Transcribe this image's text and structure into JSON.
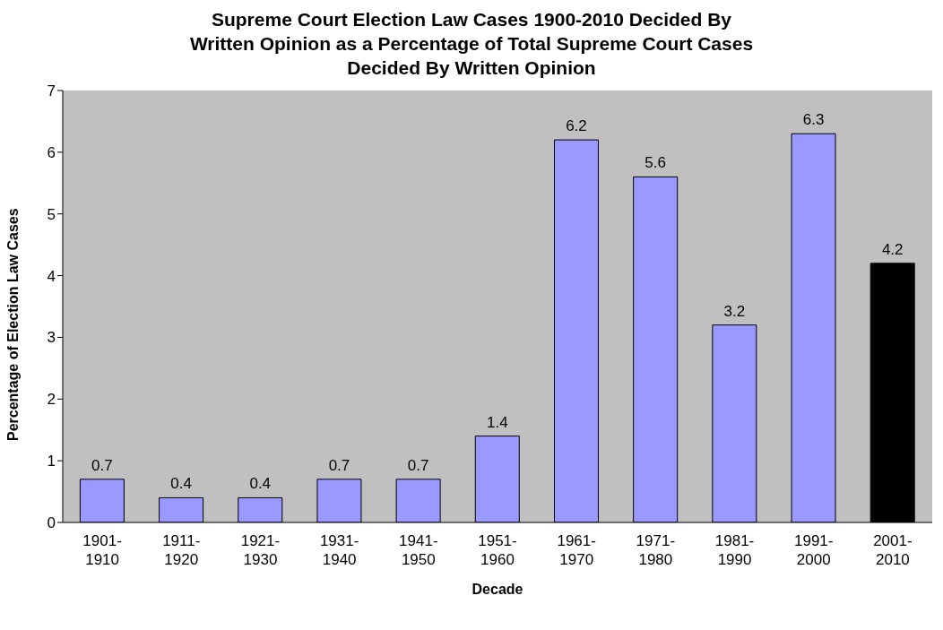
{
  "chart_data": {
    "type": "bar",
    "title": "Supreme Court Election Law Cases 1900-2010 Decided By Written Opinion as a Percentage of  Total Supreme Court Cases Decided By Written Opinion",
    "xlabel": "Decade",
    "ylabel": "Percentage of Election Law Cases",
    "categories": [
      "1901-1910",
      "1911-1920",
      "1921-1930",
      "1931-1940",
      "1941-1950",
      "1951-1960",
      "1961-1970",
      "1971-1980",
      "1981-1990",
      "1991-2000",
      "2001-2010"
    ],
    "values": [
      0.7,
      0.4,
      0.4,
      0.7,
      0.7,
      1.4,
      6.2,
      5.6,
      3.2,
      6.3,
      4.2
    ],
    "colors": [
      "#9999ff",
      "#9999ff",
      "#9999ff",
      "#9999ff",
      "#9999ff",
      "#9999ff",
      "#9999ff",
      "#9999ff",
      "#9999ff",
      "#9999ff",
      "#000000"
    ],
    "ylim": [
      0,
      7
    ],
    "yticks": [
      0,
      1,
      2,
      3,
      4,
      5,
      6,
      7
    ],
    "data_labels": true,
    "grid": false
  }
}
